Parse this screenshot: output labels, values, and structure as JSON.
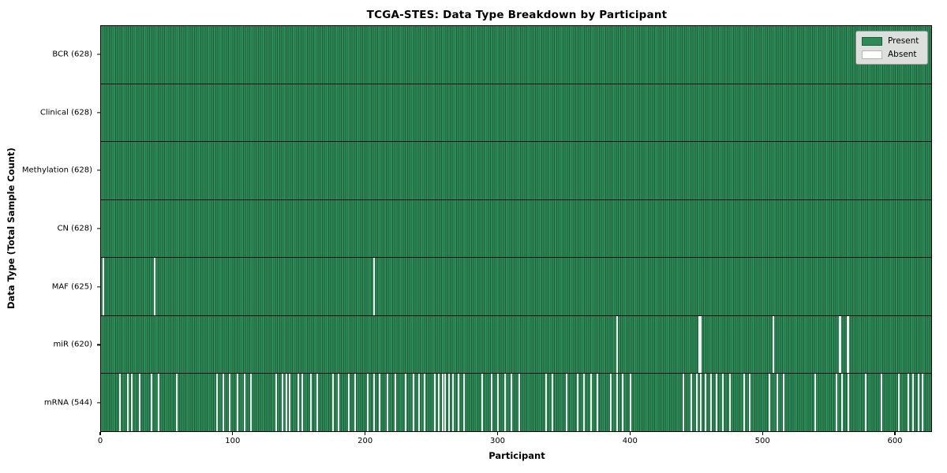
{
  "title": "TCGA-STES: Data Type Breakdown by Participant",
  "x_axis": {
    "label": "Participant"
  },
  "y_axis": {
    "label": "Data Type (Total Sample Count)"
  },
  "legend": {
    "present_label": "Present",
    "absent_label": "Absent"
  },
  "colors": {
    "present": "#2e8b57",
    "present_edge": "#1e5e3c",
    "absent": "#f4f4f4",
    "absent_swatch": "#ffffff",
    "legend_bg": "#dcdfdc",
    "legend_border": "#9a9a9a",
    "row_divider": "#101010",
    "plot_border": "#000000"
  },
  "chart_data": {
    "type": "heatmap",
    "title": "TCGA-STES: Data Type Breakdown by Participant",
    "xlabel": "Participant",
    "ylabel": "Data Type (Total Sample Count)",
    "legend_entries": [
      "Present",
      "Absent"
    ],
    "legend_position": "upper right",
    "grid": false,
    "n_participants": 628,
    "xlim": [
      0,
      628
    ],
    "x_ticks": [
      0,
      100,
      200,
      300,
      400,
      500,
      600
    ],
    "rows": [
      {
        "name": "BCR",
        "label": "BCR (628)",
        "present_count": 628,
        "absent_count": 0,
        "absent_participants": []
      },
      {
        "name": "Clinical",
        "label": "Clinical (628)",
        "present_count": 628,
        "absent_count": 0,
        "absent_participants": []
      },
      {
        "name": "Methylation",
        "label": "Methylation (628)",
        "present_count": 628,
        "absent_count": 0,
        "absent_participants": []
      },
      {
        "name": "CN",
        "label": "CN (628)",
        "present_count": 628,
        "absent_count": 0,
        "absent_participants": []
      },
      {
        "name": "MAF",
        "label": "MAF (625)",
        "present_count": 625,
        "absent_count": 3,
        "absent_participants": [
          1,
          40,
          206
        ]
      },
      {
        "name": "miR",
        "label": "miR (620)",
        "present_count": 620,
        "absent_count": 8,
        "absent_participants": [
          390,
          452,
          453,
          508,
          558,
          559,
          564,
          565
        ]
      },
      {
        "name": "mRNA",
        "label": "mRNA (544)",
        "present_count": 544,
        "absent_count": 84,
        "absent_participants": [
          14,
          20,
          23,
          29,
          38,
          43,
          57,
          87,
          92,
          97,
          103,
          108,
          113,
          132,
          137,
          140,
          142,
          149,
          152,
          158,
          163,
          175,
          179,
          187,
          192,
          201,
          206,
          210,
          216,
          222,
          230,
          236,
          240,
          244,
          252,
          255,
          258,
          260,
          263,
          266,
          270,
          274,
          288,
          295,
          300,
          305,
          310,
          316,
          336,
          341,
          352,
          360,
          365,
          370,
          375,
          385,
          390,
          394,
          400,
          440,
          446,
          450,
          453,
          457,
          461,
          465,
          470,
          475,
          486,
          490,
          505,
          511,
          516,
          540,
          556,
          560,
          565,
          578,
          590,
          603,
          610,
          614,
          618,
          621
        ]
      }
    ]
  }
}
